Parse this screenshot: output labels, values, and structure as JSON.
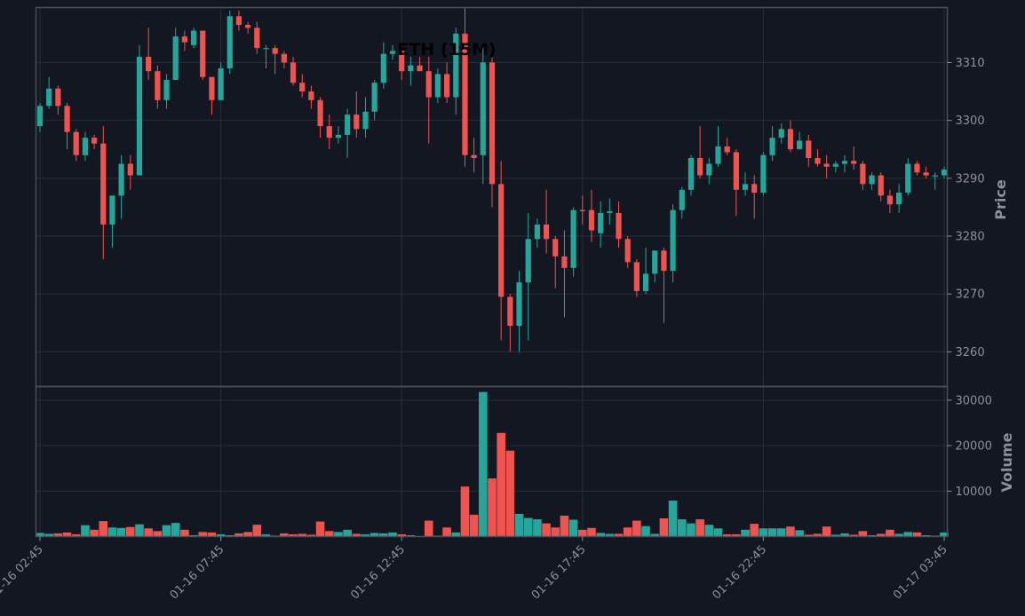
{
  "colors": {
    "background": "#131722",
    "up": "#26a69a",
    "down": "#ef5350",
    "grid": "#2a2e39",
    "frame": "#4b4f5a",
    "text": "#8b909b"
  },
  "chart_data": {
    "type": "candlestick",
    "title": "ETH (15M)",
    "price_label": "Price",
    "volume_label": "Volume",
    "price_ylim": [
      3254,
      3319.5
    ],
    "volume_ylim": [
      0,
      33000
    ],
    "grid": true,
    "price_ticks": [
      3260,
      3270,
      3280,
      3290,
      3300,
      3310
    ],
    "volume_ticks": [
      10000,
      20000,
      30000
    ],
    "x_ticks": [
      {
        "index": 0,
        "label": "01-16 02:45"
      },
      {
        "index": 20,
        "label": "01-16 07:45"
      },
      {
        "index": 40,
        "label": "01-16 12:45"
      },
      {
        "index": 60,
        "label": "01-16 17:45"
      },
      {
        "index": 80,
        "label": "01-16 22:45"
      },
      {
        "index": 100,
        "label": "01-17 03:45"
      }
    ],
    "candles": [
      [
        3299,
        3303,
        3298,
        3302.5,
        800
      ],
      [
        3302.5,
        3307.5,
        3302,
        3305.5,
        600
      ],
      [
        3305.5,
        3306,
        3301,
        3302.5,
        700
      ],
      [
        3302.5,
        3303,
        3295,
        3298,
        900
      ],
      [
        3298,
        3298.5,
        3293,
        3294,
        500
      ],
      [
        3294,
        3298,
        3293,
        3297,
        2500
      ],
      [
        3297,
        3297.5,
        3295,
        3296,
        1500
      ],
      [
        3296,
        3299,
        3276,
        3282,
        3400
      ],
      [
        3282,
        3287,
        3278,
        3287,
        2000
      ],
      [
        3287,
        3294,
        3283,
        3292.5,
        1900
      ],
      [
        3292.5,
        3294,
        3288,
        3290.5,
        2100
      ],
      [
        3290.5,
        3313,
        3290.5,
        3311,
        2700
      ],
      [
        3311,
        3316,
        3307,
        3308.5,
        1800
      ],
      [
        3308.5,
        3309.5,
        3302,
        3303.5,
        1200
      ],
      [
        3303.5,
        3308,
        3302,
        3307,
        2500
      ],
      [
        3307,
        3316,
        3307,
        3314.5,
        3000
      ],
      [
        3314.5,
        3315.5,
        3312,
        3313.5,
        1500
      ],
      [
        3313,
        3316,
        3312.5,
        3315.5,
        300
      ],
      [
        3315.5,
        3315.5,
        3307,
        3307.5,
        1000
      ],
      [
        3307.5,
        3307.5,
        3301,
        3303.5,
        900
      ],
      [
        3303.5,
        3310,
        3303.5,
        3309,
        500
      ],
      [
        3309,
        3319,
        3308,
        3318,
        300
      ],
      [
        3318,
        3319,
        3315.5,
        3316.5,
        700
      ],
      [
        3316.5,
        3317,
        3315,
        3316,
        1000
      ],
      [
        3316,
        3317,
        3311.5,
        3312.5,
        2600
      ],
      [
        3312.5,
        3313,
        3309,
        3312.5,
        500
      ],
      [
        3312.5,
        3313,
        3308,
        3311.5,
        200
      ],
      [
        3311.5,
        3312,
        3309,
        3310,
        700
      ],
      [
        3310,
        3311,
        3306,
        3306.5,
        500
      ],
      [
        3306.5,
        3308,
        3304,
        3305,
        600
      ],
      [
        3305,
        3306,
        3302,
        3303.5,
        400
      ],
      [
        3303.5,
        3304,
        3297,
        3299,
        3300
      ],
      [
        3299,
        3301,
        3295,
        3297,
        1200
      ],
      [
        3297,
        3299,
        3296,
        3297.5,
        1000
      ],
      [
        3297.5,
        3302,
        3293.5,
        3301,
        1500
      ],
      [
        3301,
        3305,
        3297,
        3298.5,
        600
      ],
      [
        3298.5,
        3304,
        3297,
        3301.5,
        500
      ],
      [
        3301.5,
        3307,
        3300,
        3306.5,
        800
      ],
      [
        3306.5,
        3313.5,
        3305.5,
        3311.5,
        700
      ],
      [
        3311.5,
        3313,
        3310.5,
        3312,
        900
      ],
      [
        3312,
        3313,
        3307,
        3308.5,
        500
      ],
      [
        3308.5,
        3311,
        3306,
        3309.5,
        300
      ],
      [
        3309.5,
        3311,
        3308.5,
        3308.5,
        100
      ],
      [
        3308.5,
        3311,
        3296,
        3304,
        3500
      ],
      [
        3304,
        3309,
        3303,
        3308,
        200
      ],
      [
        3308,
        3310,
        3303,
        3304,
        2000
      ],
      [
        3304,
        3316,
        3301,
        3315,
        900
      ],
      [
        3315,
        3319.5,
        3292,
        3294,
        11000
      ],
      [
        3294,
        3297,
        3291,
        3293.5,
        4800
      ],
      [
        3294,
        3313,
        3289,
        3310,
        31800
      ],
      [
        3310,
        3311,
        3285,
        3289,
        12800
      ],
      [
        3289,
        3293,
        3262,
        3269.5,
        22800
      ],
      [
        3269.5,
        3270,
        3260,
        3264.5,
        18900
      ],
      [
        3264.5,
        3274,
        3260,
        3272,
        5000
      ],
      [
        3272,
        3284,
        3262,
        3279.5,
        4100
      ],
      [
        3279.5,
        3283,
        3278,
        3282,
        3800
      ],
      [
        3282,
        3288,
        3277,
        3279.5,
        2900
      ],
      [
        3279.5,
        3280,
        3271,
        3276.5,
        2000
      ],
      [
        3276.5,
        3281,
        3266,
        3274.5,
        4600
      ],
      [
        3274.5,
        3285,
        3273,
        3284.5,
        3700
      ],
      [
        3284.5,
        3287,
        3282,
        3284.3,
        1500
      ],
      [
        3284.5,
        3288,
        3279,
        3281,
        1900
      ],
      [
        3280.5,
        3286,
        3278,
        3284,
        800
      ],
      [
        3284,
        3286.5,
        3282,
        3284.3,
        600
      ],
      [
        3284,
        3286,
        3278,
        3279.5,
        600
      ],
      [
        3279.5,
        3280,
        3274.5,
        3275.5,
        2000
      ],
      [
        3275.5,
        3276,
        3269.5,
        3270.5,
        3500
      ],
      [
        3270.5,
        3278,
        3270,
        3273.5,
        2300
      ],
      [
        3273.5,
        3277.5,
        3272,
        3277.5,
        600
      ],
      [
        3277.5,
        3278,
        3265,
        3274,
        4000
      ],
      [
        3274,
        3285.5,
        3272,
        3284.5,
        7900
      ],
      [
        3284.5,
        3288.5,
        3283,
        3288,
        3800
      ],
      [
        3288,
        3294,
        3287,
        3293.5,
        2900
      ],
      [
        3293.5,
        3299,
        3290,
        3290.5,
        3800
      ],
      [
        3290.5,
        3293.5,
        3289,
        3292.5,
        2600
      ],
      [
        3292.5,
        3299,
        3292,
        3295.5,
        1800
      ],
      [
        3295.5,
        3297,
        3294,
        3294.5,
        500
      ],
      [
        3294.5,
        3295,
        3283.5,
        3288,
        500
      ],
      [
        3288,
        3291,
        3287,
        3289,
        1500
      ],
      [
        3289,
        3290.5,
        3283,
        3287.5,
        2800
      ],
      [
        3287.5,
        3294.5,
        3287,
        3294,
        1800
      ],
      [
        3294,
        3299,
        3293,
        3297,
        1800
      ],
      [
        3297,
        3299.5,
        3296,
        3298.5,
        1800
      ],
      [
        3298.5,
        3300,
        3294.5,
        3295,
        2200
      ],
      [
        3295,
        3298,
        3295,
        3296.5,
        1400
      ],
      [
        3296.5,
        3297.5,
        3292,
        3293.5,
        400
      ],
      [
        3293.5,
        3295,
        3292,
        3292.5,
        600
      ],
      [
        3292.5,
        3294,
        3290,
        3292,
        2200
      ],
      [
        3292,
        3293,
        3291,
        3292.5,
        400
      ],
      [
        3292.5,
        3294,
        3291,
        3293,
        700
      ],
      [
        3293,
        3295.5,
        3291.5,
        3292.5,
        400
      ],
      [
        3292.5,
        3293,
        3288,
        3289,
        1200
      ],
      [
        3289,
        3291,
        3288,
        3290.5,
        300
      ],
      [
        3290.5,
        3291,
        3286,
        3287,
        600
      ],
      [
        3287,
        3288,
        3284,
        3285.5,
        1500
      ],
      [
        3285.5,
        3289,
        3284,
        3287.5,
        600
      ],
      [
        3287.5,
        3293.5,
        3287,
        3292.5,
        1000
      ],
      [
        3292.5,
        3293,
        3290.5,
        3291,
        900
      ],
      [
        3291,
        3292,
        3290,
        3290.5,
        300
      ],
      [
        3290.5,
        3291,
        3288,
        3290.5,
        200
      ],
      [
        3290.5,
        3292,
        3290,
        3291.5,
        900
      ]
    ]
  }
}
